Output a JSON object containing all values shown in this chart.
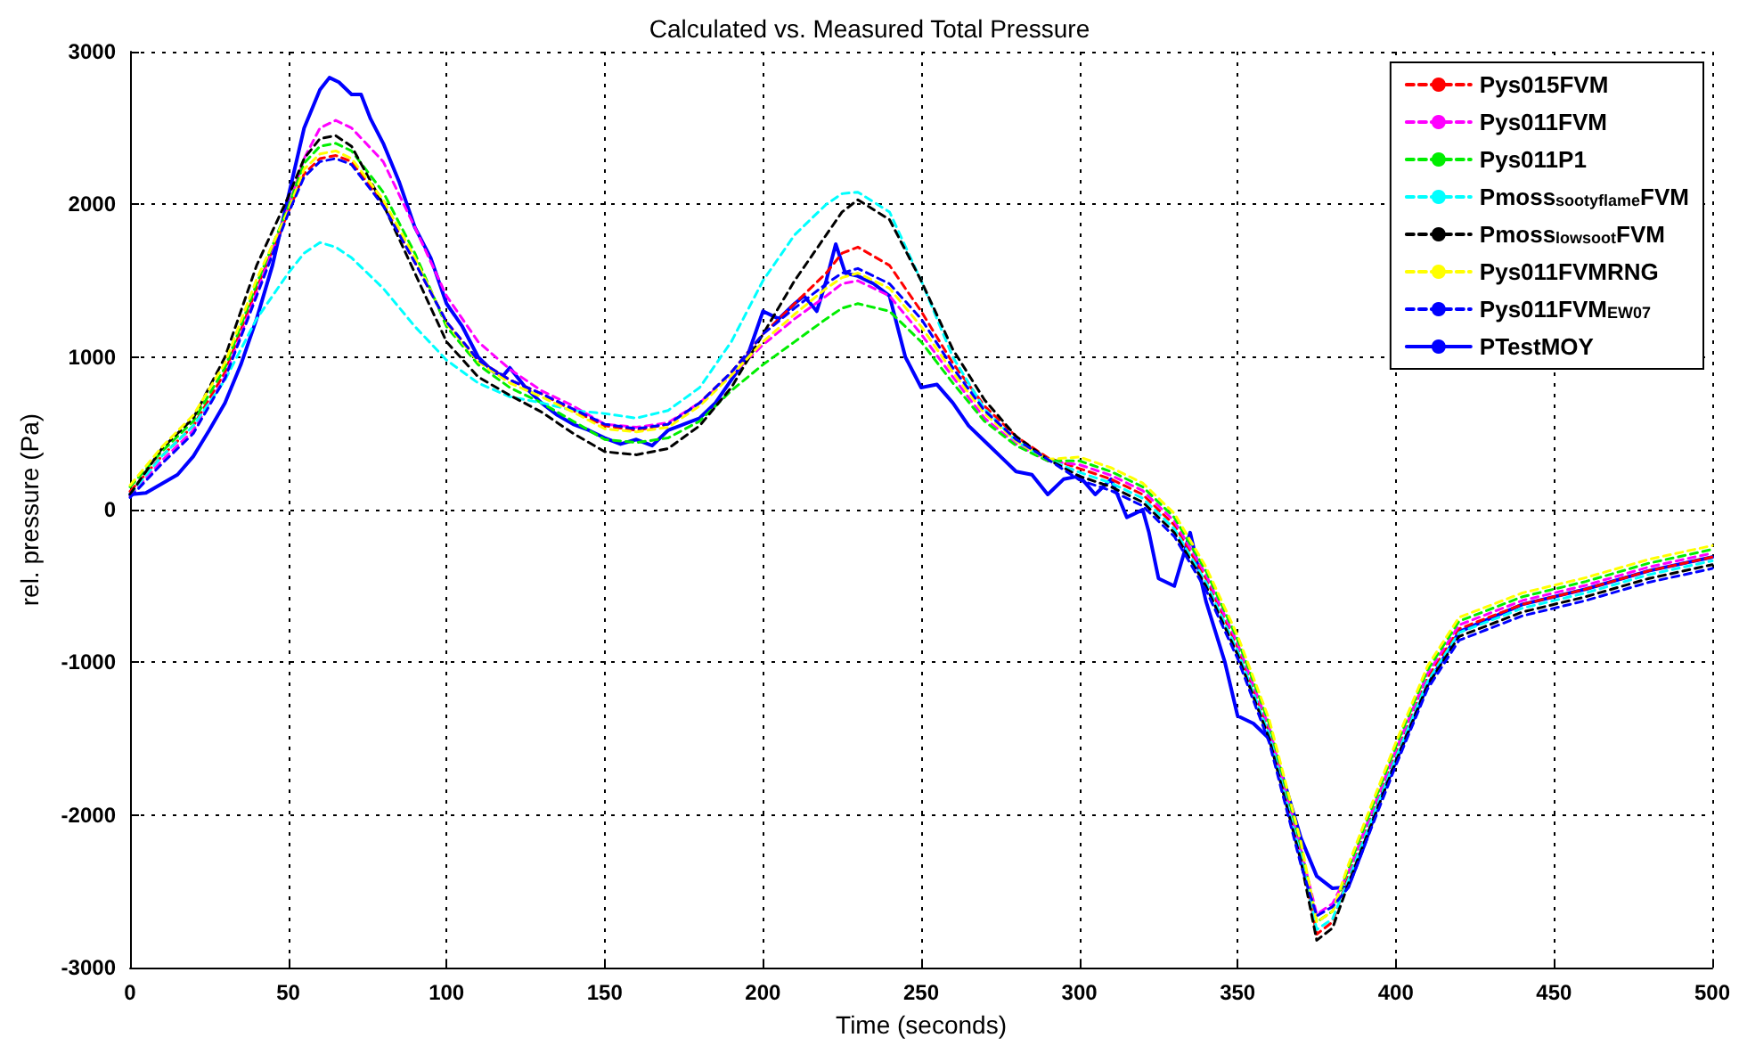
{
  "chart_data": {
    "type": "line",
    "title": "Calculated vs. Measured Total Pressure",
    "xlabel": "Time (seconds)",
    "ylabel": "rel. pressure (Pa)",
    "xlim": [
      0,
      500
    ],
    "xticks": [
      0,
      50,
      100,
      150,
      200,
      250,
      300,
      350,
      400,
      450,
      500
    ],
    "ylim": [
      -3000,
      3000
    ],
    "yticks": [
      -3000,
      -2000,
      -1000,
      0,
      1000,
      2000,
      3000
    ],
    "grid": true,
    "legend": "top right",
    "marker": "none",
    "x": [
      0,
      10,
      20,
      30,
      40,
      50,
      55,
      60,
      65,
      70,
      80,
      90,
      100,
      110,
      120,
      130,
      140,
      150,
      160,
      170,
      180,
      190,
      200,
      210,
      220,
      225,
      230,
      240,
      250,
      260,
      270,
      280,
      290,
      300,
      310,
      320,
      330,
      340,
      350,
      360,
      365,
      370,
      375,
      380,
      385,
      390,
      400,
      410,
      420,
      440,
      460,
      480,
      500
    ],
    "series": [
      {
        "name": "Pys015FVM",
        "color": "#ff0000",
        "line_style": "dashed",
        "values": [
          120,
          350,
          550,
          900,
          1450,
          1950,
          2200,
          2300,
          2320,
          2280,
          2000,
          1620,
          1230,
          980,
          850,
          760,
          650,
          550,
          520,
          560,
          700,
          900,
          1150,
          1350,
          1550,
          1680,
          1720,
          1600,
          1300,
          960,
          680,
          480,
          340,
          270,
          200,
          100,
          -100,
          -450,
          -900,
          -1450,
          -1850,
          -2250,
          -2780,
          -2700,
          -2400,
          -2130,
          -1600,
          -1100,
          -780,
          -620,
          -520,
          -400,
          -310
        ]
      },
      {
        "name": "Pys011FVM",
        "color": "#ff00ff",
        "line_style": "dashed",
        "values": [
          90,
          320,
          520,
          870,
          1420,
          1980,
          2300,
          2500,
          2550,
          2500,
          2280,
          1850,
          1400,
          1100,
          920,
          780,
          680,
          560,
          540,
          570,
          700,
          880,
          1080,
          1250,
          1400,
          1480,
          1500,
          1400,
          1150,
          870,
          600,
          430,
          320,
          295,
          225,
          125,
          -75,
          -425,
          -875,
          -1425,
          -1825,
          -2225,
          -2650,
          -2580,
          -2375,
          -2105,
          -1575,
          -1075,
          -755,
          -595,
          -495,
          -375,
          -285
        ]
      },
      {
        "name": "Pys011P1",
        "color": "#00ee00",
        "line_style": "dashed",
        "values": [
          150,
          380,
          580,
          930,
          1480,
          1980,
          2270,
          2380,
          2400,
          2350,
          2080,
          1680,
          1200,
          950,
          800,
          700,
          580,
          460,
          440,
          470,
          580,
          780,
          950,
          1100,
          1250,
          1320,
          1350,
          1300,
          1100,
          830,
          580,
          420,
          320,
          320,
          250,
          150,
          -50,
          -400,
          -850,
          -1400,
          -1800,
          -2200,
          -2700,
          -2630,
          -2350,
          -2080,
          -1550,
          -1050,
          -730,
          -570,
          -470,
          -350,
          -260
        ]
      },
      {
        "name": "Pmoss$_{sootyflame}$FVM",
        "color": "#00ffff",
        "line_style": "dashed",
        "values": [
          100,
          350,
          550,
          850,
          1250,
          1550,
          1680,
          1750,
          1720,
          1650,
          1450,
          1200,
          980,
          830,
          740,
          700,
          650,
          630,
          600,
          650,
          800,
          1100,
          1500,
          1800,
          2000,
          2070,
          2080,
          1950,
          1500,
          1000,
          660,
          450,
          330,
          245,
          175,
          75,
          -125,
          -475,
          -925,
          -1475,
          -1875,
          -2275,
          -2750,
          -2680,
          -2425,
          -2155,
          -1625,
          -1125,
          -805,
          -645,
          -545,
          -425,
          -335
        ]
      },
      {
        "name": "Pmoss$_{lowsoot}$FVM",
        "color": "#000000",
        "line_style": "dashed",
        "values": [
          100,
          400,
          600,
          1000,
          1600,
          2050,
          2300,
          2430,
          2450,
          2380,
          2000,
          1550,
          1100,
          870,
          750,
          640,
          500,
          380,
          360,
          400,
          550,
          800,
          1150,
          1500,
          1800,
          1950,
          2030,
          1900,
          1500,
          1050,
          720,
          480,
          330,
          220,
          150,
          50,
          -150,
          -500,
          -950,
          -1500,
          -1900,
          -2300,
          -2820,
          -2740,
          -2450,
          -2180,
          -1650,
          -1150,
          -830,
          -670,
          -570,
          -450,
          -360
        ]
      },
      {
        "name": "Pys011FVMRNG",
        "color": "#ffff00",
        "line_style": "dashed",
        "values": [
          160,
          410,
          620,
          960,
          1510,
          1960,
          2230,
          2330,
          2350,
          2300,
          2030,
          1650,
          1220,
          970,
          830,
          740,
          640,
          530,
          510,
          540,
          680,
          880,
          1100,
          1280,
          1450,
          1520,
          1550,
          1450,
          1200,
          900,
          630,
          450,
          330,
          345,
          275,
          175,
          -25,
          -375,
          -825,
          -1375,
          -1775,
          -2175,
          -2700,
          -2630,
          -2325,
          -2055,
          -1525,
          -1025,
          -705,
          -545,
          -445,
          -325,
          -235
        ]
      },
      {
        "name": "Pys011FVM$_{EW07}$",
        "color": "#0000ff",
        "line_style": "dashed",
        "values": [
          80,
          300,
          500,
          860,
          1400,
          1940,
          2180,
          2280,
          2300,
          2260,
          1990,
          1620,
          1230,
          980,
          850,
          760,
          660,
          560,
          530,
          560,
          700,
          900,
          1150,
          1320,
          1480,
          1550,
          1580,
          1480,
          1250,
          930,
          650,
          460,
          330,
          195,
          125,
          25,
          -175,
          -525,
          -975,
          -1525,
          -1925,
          -2325,
          -2660,
          -2600,
          -2475,
          -2205,
          -1675,
          -1175,
          -855,
          -695,
          -595,
          -475,
          -385
        ]
      },
      {
        "name": "PTestMOY",
        "color": "#0000ff",
        "line_style": "solid",
        "x": [
          0,
          5,
          10,
          15,
          20,
          25,
          30,
          35,
          40,
          45,
          50,
          55,
          60,
          63,
          66,
          70,
          73,
          76,
          80,
          85,
          90,
          95,
          100,
          105,
          110,
          115,
          118,
          120,
          125,
          130,
          135,
          140,
          145,
          150,
          155,
          160,
          165,
          170,
          175,
          180,
          185,
          190,
          195,
          200,
          205,
          210,
          213,
          217,
          220,
          223,
          226,
          230,
          235,
          240,
          245,
          250,
          255,
          260,
          265,
          270,
          275,
          280,
          285,
          290,
          295,
          300,
          305,
          310,
          315,
          320,
          322,
          325,
          330,
          335,
          340,
          343,
          346,
          350,
          355,
          360,
          365,
          370,
          375,
          380,
          385,
          390,
          395,
          400,
          410,
          420,
          440,
          460,
          480,
          500
        ],
        "values": [
          100,
          110,
          170,
          230,
          350,
          520,
          700,
          950,
          1250,
          1600,
          2050,
          2500,
          2750,
          2830,
          2800,
          2720,
          2720,
          2560,
          2400,
          2150,
          1850,
          1650,
          1350,
          1200,
          1000,
          900,
          880,
          930,
          800,
          700,
          620,
          560,
          520,
          470,
          430,
          460,
          420,
          520,
          560,
          600,
          700,
          850,
          1000,
          1300,
          1250,
          1350,
          1400,
          1300,
          1500,
          1740,
          1550,
          1530,
          1480,
          1400,
          1000,
          800,
          820,
          700,
          550,
          450,
          350,
          250,
          230,
          100,
          200,
          220,
          100,
          200,
          -50,
          0,
          -150,
          -450,
          -500,
          -150,
          -600,
          -800,
          -1000,
          -1350,
          -1400,
          -1500,
          -1800,
          -2150,
          -2400,
          -2480,
          -2470,
          -2200,
          -1900,
          -1650,
          -1150,
          -800,
          -620,
          -520,
          -400,
          -310
        ]
      }
    ]
  }
}
